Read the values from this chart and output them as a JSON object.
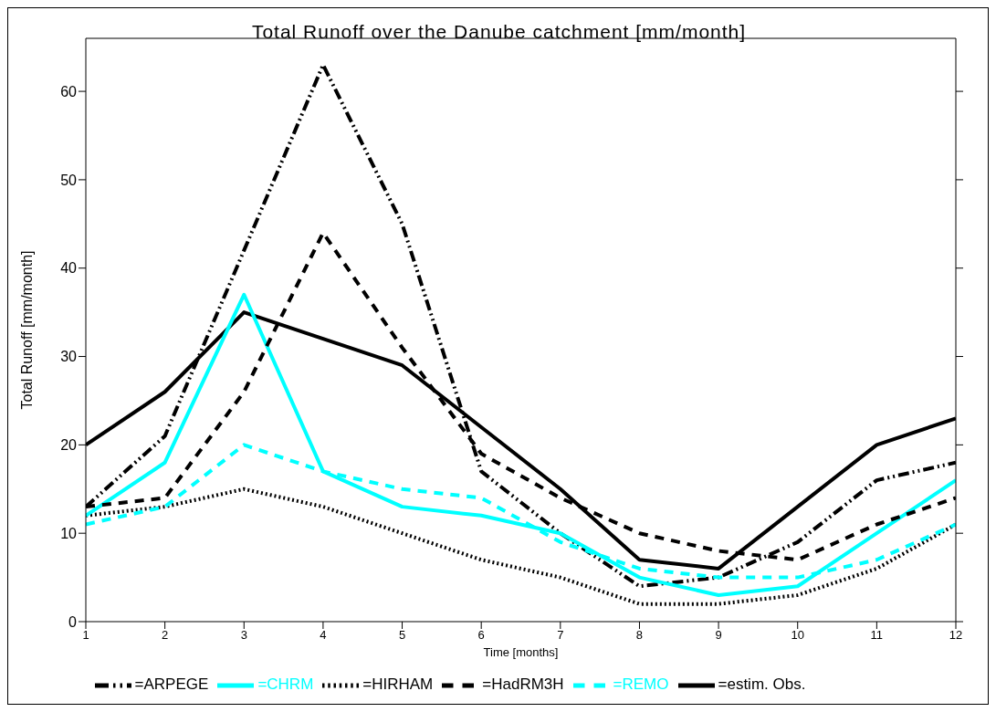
{
  "chart_data": {
    "type": "line",
    "title": "Total Runoff over the Danube catchment [mm/month]",
    "xlabel": "Time [months]",
    "ylabel": "Total Runoff [mm/month]",
    "x": [
      1,
      2,
      3,
      4,
      5,
      6,
      7,
      8,
      9,
      10,
      11,
      12
    ],
    "xlim": [
      1,
      12
    ],
    "xticks": [
      1,
      2,
      3,
      4,
      5,
      6,
      7,
      8,
      9,
      10,
      11,
      12
    ],
    "ylim": [
      0,
      66
    ],
    "yticks": [
      0,
      10,
      20,
      30,
      40,
      50,
      60
    ],
    "grid": false,
    "legend": "bottom",
    "marker": "none",
    "series": [
      {
        "name": "=estim. Obs.",
        "color": "#000000",
        "line_style": "solid",
        "values": [
          20,
          26,
          35,
          32,
          29,
          22,
          15,
          7,
          6,
          13,
          20,
          23
        ]
      },
      {
        "name": "=HIRHAM",
        "color": "#000000",
        "line_style": "dotted",
        "values": [
          12,
          13,
          15,
          13,
          10,
          7,
          5,
          2,
          2,
          3,
          6,
          11
        ]
      },
      {
        "name": "=ARPEGE",
        "color": "#000000",
        "line_style": "dashdot",
        "values": [
          13,
          21,
          42,
          63,
          45,
          17,
          10,
          4,
          5,
          9,
          16,
          18
        ]
      },
      {
        "name": "=CHRM",
        "color": "#00ffff",
        "line_style": "solid",
        "values": [
          12,
          18,
          37,
          17,
          13,
          12,
          10,
          5,
          3,
          4,
          10,
          16
        ]
      },
      {
        "name": "=HadRM3H",
        "color": "#000000",
        "line_style": "dashed",
        "values": [
          13,
          14,
          26,
          44,
          31,
          19,
          14,
          10,
          8,
          7,
          11,
          14
        ]
      },
      {
        "name": "=REMO",
        "color": "#00ffff",
        "line_style": "dashed",
        "values": [
          11,
          13,
          20,
          17,
          15,
          14,
          9,
          6,
          5,
          5,
          7,
          11
        ]
      }
    ]
  }
}
